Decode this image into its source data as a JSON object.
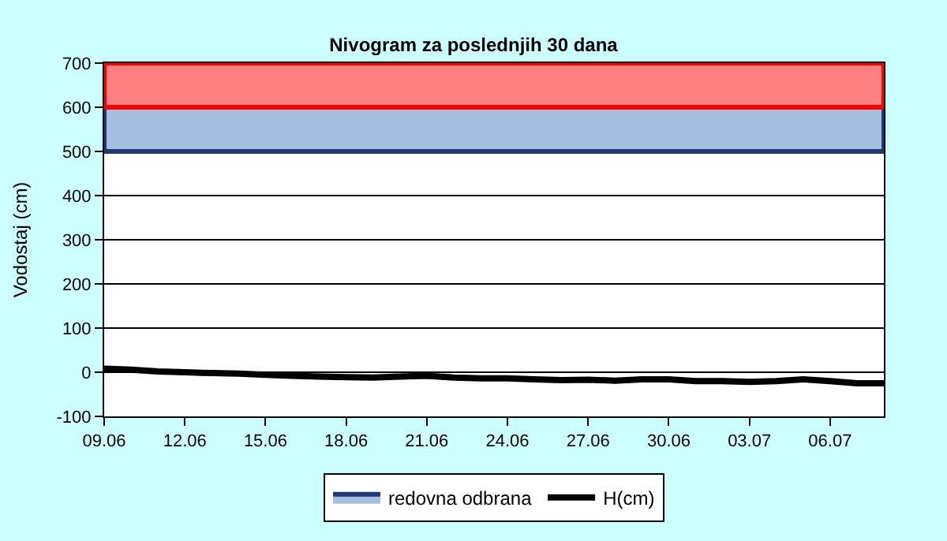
{
  "chart_data": {
    "type": "line",
    "title": "Nivogram za poslednjih 30 dana",
    "ylabel": "Vodostaj (cm)",
    "x": [
      "--06-09",
      "--06-10",
      "--06-11",
      "--06-12",
      "--06-13",
      "--06-14",
      "--06-15",
      "--06-16",
      "--06-17",
      "--06-18",
      "--06-19",
      "--06-20",
      "--06-21",
      "--06-22",
      "--06-23",
      "--06-24",
      "--06-25",
      "--06-26",
      "--06-27",
      "--06-28",
      "--06-29",
      "--06-30",
      "--07-01",
      "--07-02",
      "--07-03",
      "--07-04",
      "--07-05",
      "--07-06",
      "--07-07",
      "--07-08"
    ],
    "series": [
      {
        "name": "H(cm)",
        "color": "#000000",
        "values": [
          8,
          6,
          2,
          0,
          -2,
          -3,
          -6,
          -8,
          -10,
          -11,
          -12,
          -10,
          -8,
          -12,
          -14,
          -14,
          -16,
          -18,
          -17,
          -19,
          -16,
          -16,
          -20,
          -20,
          -22,
          -20,
          -16,
          -20,
          -25,
          -25
        ]
      }
    ],
    "bands": [
      {
        "axis": "y",
        "from": 500,
        "to": 600,
        "label": "redovna odbrana",
        "color": "#a6bfe0"
      },
      {
        "axis": "y",
        "from": 600,
        "to": 700,
        "color": "#ff8080"
      }
    ],
    "ylim": [
      -100,
      700
    ],
    "yticks": [
      -100,
      0,
      100,
      200,
      300,
      400,
      500,
      600,
      700
    ],
    "xlim": [
      "--06-09",
      "--07-08"
    ],
    "xticks": [
      {
        "value": "--06-09",
        "label": "09.06"
      },
      {
        "value": "--06-12",
        "label": "12.06"
      },
      {
        "value": "--06-15",
        "label": "15.06"
      },
      {
        "value": "--06-18",
        "label": "18.06"
      },
      {
        "value": "--06-21",
        "label": "21.06"
      },
      {
        "value": "--06-24",
        "label": "24.06"
      },
      {
        "value": "--06-27",
        "label": "27.06"
      },
      {
        "value": "--06-30",
        "label": "30.06"
      },
      {
        "value": "--07-03",
        "label": "03.07"
      },
      {
        "value": "--07-06",
        "label": "06.07"
      }
    ],
    "grid": "y",
    "legend": "bottom",
    "marker": "none",
    "line_style": "solid"
  }
}
